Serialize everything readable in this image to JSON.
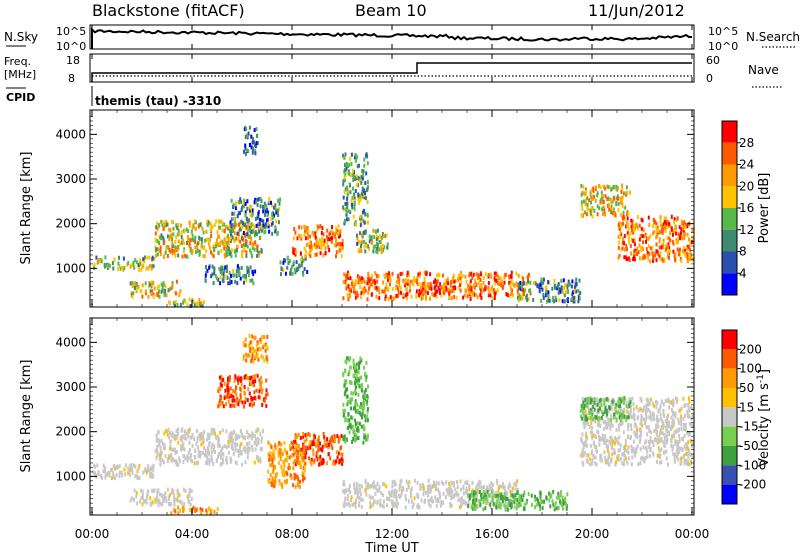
{
  "header": {
    "radar": "Blackstone (fitACF)",
    "beam": "Beam 10",
    "date": "11/Jun/2012"
  },
  "summary": {
    "nsky_label": "N.Sky",
    "nsky_ticks": [
      "10^5",
      "10^0"
    ],
    "nsearch_label": "N.Search",
    "nsearch_ticks": [
      "10^5",
      "10^0"
    ],
    "freq_label_line1": "Freq.",
    "freq_label_line2": "[MHz]",
    "freq_ticks": [
      "18",
      "8"
    ],
    "nave_label": "Nave",
    "nave_ticks": [
      "60",
      "0"
    ],
    "cpid_label": "CPID",
    "cpid_value": "themis (tau) -3310"
  },
  "colors": {
    "power_scale": [
      "#0000ff",
      "#2a4fb0",
      "#3f8a70",
      "#58b84a",
      "#ffc400",
      "#ff9a00",
      "#ff5a00",
      "#ff0000"
    ],
    "velocity_scale": [
      "#ff0000",
      "#ff5a00",
      "#ff9a00",
      "#ffc000",
      "#c8c8c8",
      "#c8c8c8",
      "#78d050",
      "#3fa040",
      "#3a4fb0",
      "#0000ff"
    ],
    "ground_scatter": "#c8c8c8",
    "line": "#000000"
  },
  "chart_data": [
    {
      "type": "heatmap",
      "panel": "power",
      "ylabel": "Slant Range [km]",
      "xlabel": "",
      "x_ticks": [
        "00:00",
        "04:00",
        "08:00",
        "12:00",
        "16:00",
        "20:00",
        "00:00"
      ],
      "y_ticks": [
        1000,
        2000,
        3000,
        4000
      ],
      "xlim_hours": [
        0,
        24
      ],
      "ylim_km": [
        180,
        4500
      ],
      "colorbar_label": "Power [dB]",
      "colorbar_ticks": [
        28,
        24,
        20,
        16,
        12,
        8,
        4
      ],
      "colorbar_range": [
        0,
        32
      ],
      "echo_regions": [
        {
          "t_start": 0.0,
          "t_end": 2.5,
          "range_start": 1000,
          "range_end": 1300,
          "mean": 14
        },
        {
          "t_start": 1.5,
          "t_end": 3.5,
          "range_start": 400,
          "range_end": 750,
          "mean": 18
        },
        {
          "t_start": 2.5,
          "t_end": 6.8,
          "range_start": 1300,
          "range_end": 2100,
          "mean": 18
        },
        {
          "t_start": 3.0,
          "t_end": 4.5,
          "range_start": 200,
          "range_end": 350,
          "mean": 14
        },
        {
          "t_start": 4.5,
          "t_end": 6.5,
          "range_start": 700,
          "range_end": 1100,
          "mean": 10
        },
        {
          "t_start": 5.5,
          "t_end": 7.5,
          "range_start": 1800,
          "range_end": 2600,
          "mean": 10
        },
        {
          "t_start": 6.0,
          "t_end": 6.6,
          "range_start": 3600,
          "range_end": 4200,
          "mean": 8
        },
        {
          "t_start": 7.5,
          "t_end": 8.6,
          "range_start": 900,
          "range_end": 1300,
          "mean": 10
        },
        {
          "t_start": 8.0,
          "t_end": 10.0,
          "range_start": 1300,
          "range_end": 2000,
          "mean": 24
        },
        {
          "t_start": 10.0,
          "t_end": 11.0,
          "range_start": 2000,
          "range_end": 3600,
          "mean": 12
        },
        {
          "t_start": 10.5,
          "t_end": 11.8,
          "range_start": 1400,
          "range_end": 1900,
          "mean": 14
        },
        {
          "t_start": 10.0,
          "t_end": 17.5,
          "range_start": 350,
          "range_end": 950,
          "mean": 24
        },
        {
          "t_start": 13.0,
          "t_end": 14.5,
          "range_start": 450,
          "range_end": 650,
          "mean": 30
        },
        {
          "t_start": 17.0,
          "t_end": 19.5,
          "range_start": 300,
          "range_end": 800,
          "mean": 10
        },
        {
          "t_start": 19.5,
          "t_end": 21.5,
          "range_start": 2200,
          "range_end": 2900,
          "mean": 20
        },
        {
          "t_start": 21.0,
          "t_end": 24.0,
          "range_start": 1200,
          "range_end": 2200,
          "mean": 24
        }
      ]
    },
    {
      "type": "heatmap",
      "panel": "velocity",
      "ylabel": "Slant Range [km]",
      "xlabel": "Time UT",
      "x_ticks": [
        "00:00",
        "04:00",
        "08:00",
        "12:00",
        "16:00",
        "20:00",
        "00:00"
      ],
      "y_ticks": [
        1000,
        2000,
        3000,
        4000
      ],
      "xlim_hours": [
        0,
        24
      ],
      "ylim_km": [
        180,
        4500
      ],
      "colorbar_label": "Velocity [m s^-1]",
      "colorbar_ticks": [
        200,
        100,
        50,
        15,
        -15,
        -50,
        -100,
        -200
      ],
      "echo_regions": [
        {
          "t_start": 0.0,
          "t_end": 2.5,
          "range_start": 1000,
          "range_end": 1300,
          "class": "ground"
        },
        {
          "t_start": 2.5,
          "t_end": 6.8,
          "range_start": 1300,
          "range_end": 2100,
          "class": "ground"
        },
        {
          "t_start": 1.5,
          "t_end": 4.0,
          "range_start": 400,
          "range_end": 750,
          "class": "ground"
        },
        {
          "t_start": 3.0,
          "t_end": 5.0,
          "range_start": 200,
          "range_end": 350,
          "class": "negative"
        },
        {
          "t_start": 5.0,
          "t_end": 7.0,
          "range_start": 2600,
          "range_end": 3300,
          "class": "negative-strong"
        },
        {
          "t_start": 6.0,
          "t_end": 7.0,
          "range_start": 3600,
          "range_end": 4200,
          "class": "negative"
        },
        {
          "t_start": 8.0,
          "t_end": 10.0,
          "range_start": 1300,
          "range_end": 2000,
          "class": "negative-strong"
        },
        {
          "t_start": 7.0,
          "t_end": 8.5,
          "range_start": 800,
          "range_end": 1800,
          "class": "negative"
        },
        {
          "t_start": 10.0,
          "t_end": 11.0,
          "range_start": 1800,
          "range_end": 3700,
          "class": "positive"
        },
        {
          "t_start": 10.0,
          "t_end": 17.0,
          "range_start": 350,
          "range_end": 950,
          "class": "ground"
        },
        {
          "t_start": 15.0,
          "t_end": 19.0,
          "range_start": 300,
          "range_end": 700,
          "class": "positive"
        },
        {
          "t_start": 19.5,
          "t_end": 24.0,
          "range_start": 1300,
          "range_end": 2800,
          "class": "ground"
        },
        {
          "t_start": 19.5,
          "t_end": 21.5,
          "range_start": 2300,
          "range_end": 2800,
          "class": "positive"
        }
      ]
    }
  ]
}
